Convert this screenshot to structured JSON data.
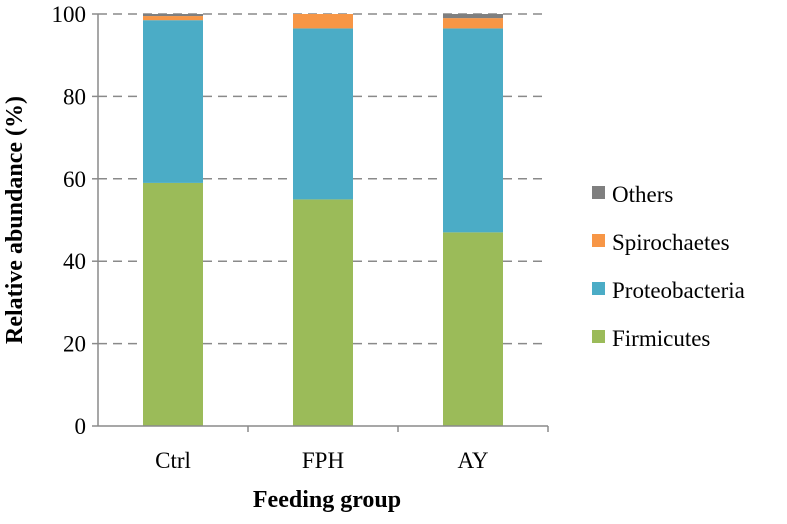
{
  "chart_data": {
    "type": "bar",
    "stacked": true,
    "xlabel": "Feeding group",
    "ylabel": "Relative abundance (%)",
    "ylim": [
      0,
      100
    ],
    "yticks": [
      0,
      20,
      40,
      60,
      80,
      100
    ],
    "grid": "horizontal dashed",
    "legend_position": "right",
    "categories": [
      "Ctrl",
      "FPH",
      "AY"
    ],
    "series": [
      {
        "name": "Firmicutes",
        "color": "#9BBB59",
        "values": [
          59,
          55,
          47
        ]
      },
      {
        "name": "Proteobacteria",
        "color": "#4BACC6",
        "values": [
          39.5,
          41.5,
          49.5
        ]
      },
      {
        "name": "Spirochaetes",
        "color": "#F79646",
        "values": [
          1.0,
          3.5,
          2.5
        ]
      },
      {
        "name": "Others",
        "color": "#7F7F7F",
        "values": [
          0.5,
          0.0,
          1.0
        ]
      }
    ],
    "legend_order": [
      "Others",
      "Spirochaetes",
      "Proteobacteria",
      "Firmicutes"
    ]
  }
}
